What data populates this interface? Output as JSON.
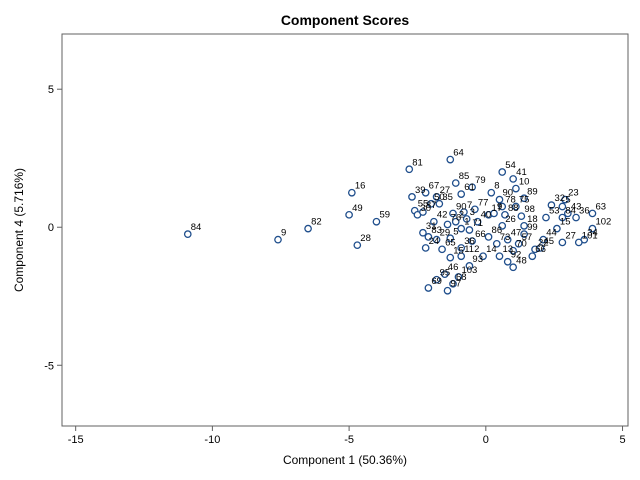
{
  "chart_data": {
    "type": "scatter",
    "title": "Component Scores",
    "xlabel": "Component 1 (50.36%)",
    "ylabel": "Component 4 (5.716%)",
    "xlim": [
      -15.5,
      5.2
    ],
    "ylim": [
      -7.2,
      7.0
    ],
    "xticks": [
      -15,
      -10,
      -5,
      0,
      5
    ],
    "yticks": [
      -5,
      0,
      5
    ],
    "grid": false,
    "legend": "none",
    "marker_color": "#1f4e8c",
    "points": [
      {
        "label": "84",
        "x": -10.9,
        "y": -0.25
      },
      {
        "label": "9",
        "x": -7.6,
        "y": -0.45
      },
      {
        "label": "82",
        "x": -6.5,
        "y": -0.05
      },
      {
        "label": "49",
        "x": -5.0,
        "y": 0.45
      },
      {
        "label": "16",
        "x": -4.9,
        "y": 1.25
      },
      {
        "label": "28",
        "x": -4.7,
        "y": -0.65
      },
      {
        "label": "59",
        "x": -4.0,
        "y": 0.2
      },
      {
        "label": "81",
        "x": -2.8,
        "y": 2.1
      },
      {
        "label": "39",
        "x": -2.7,
        "y": 1.1
      },
      {
        "label": "55",
        "x": -2.6,
        "y": 0.6
      },
      {
        "label": "30",
        "x": -2.5,
        "y": 0.45
      },
      {
        "label": "87",
        "x": -2.3,
        "y": 0.55
      },
      {
        "label": "67",
        "x": -2.2,
        "y": 1.25
      },
      {
        "label": "50",
        "x": -2.0,
        "y": 0.85
      },
      {
        "label": "35",
        "x": -1.7,
        "y": 0.85
      },
      {
        "label": "27",
        "x": -1.8,
        "y": 1.1
      },
      {
        "label": "42",
        "x": -1.9,
        "y": 0.2
      },
      {
        "label": "31",
        "x": -2.3,
        "y": -0.2
      },
      {
        "label": "83",
        "x": -2.1,
        "y": -0.35
      },
      {
        "label": "24",
        "x": -2.2,
        "y": -0.75
      },
      {
        "label": "29",
        "x": -1.8,
        "y": -0.45
      },
      {
        "label": "65",
        "x": -1.6,
        "y": -0.8
      },
      {
        "label": "15",
        "x": -1.3,
        "y": -1.1
      },
      {
        "label": "46",
        "x": -1.5,
        "y": -1.7
      },
      {
        "label": "95",
        "x": -1.8,
        "y": -1.9
      },
      {
        "label": "69",
        "x": -2.1,
        "y": -2.2
      },
      {
        "label": "97",
        "x": -1.4,
        "y": -2.3
      },
      {
        "label": "68",
        "x": -1.2,
        "y": -2.05
      },
      {
        "label": "103",
        "x": -1.0,
        "y": -1.8
      },
      {
        "label": "93",
        "x": -0.6,
        "y": -1.4
      },
      {
        "label": "112",
        "x": -0.9,
        "y": -1.05
      },
      {
        "label": "14",
        "x": -0.1,
        "y": -1.05
      },
      {
        "label": "13",
        "x": 0.5,
        "y": -1.05
      },
      {
        "label": "92",
        "x": 0.8,
        "y": -1.25
      },
      {
        "label": "48",
        "x": 1.0,
        "y": -1.45
      },
      {
        "label": "66",
        "x": 1.7,
        "y": -1.05
      },
      {
        "label": "64",
        "x": -1.3,
        "y": 2.45
      },
      {
        "label": "85",
        "x": -1.1,
        "y": 1.6
      },
      {
        "label": "61",
        "x": -0.9,
        "y": 1.2
      },
      {
        "label": "79",
        "x": -0.5,
        "y": 1.45
      },
      {
        "label": "54",
        "x": 0.6,
        "y": 2.0
      },
      {
        "label": "41",
        "x": 1.0,
        "y": 1.75
      },
      {
        "label": "10",
        "x": 1.1,
        "y": 1.4
      },
      {
        "label": "8",
        "x": 0.2,
        "y": 1.25
      },
      {
        "label": "90",
        "x": 0.5,
        "y": 1.0
      },
      {
        "label": "89",
        "x": 1.4,
        "y": 1.05
      },
      {
        "label": "23",
        "x": 2.9,
        "y": 1.0
      },
      {
        "label": "32",
        "x": 2.4,
        "y": 0.8
      },
      {
        "label": "5",
        "x": 2.8,
        "y": 0.75
      },
      {
        "label": "63",
        "x": 3.9,
        "y": 0.5
      },
      {
        "label": "43",
        "x": 3.0,
        "y": 0.5
      },
      {
        "label": "36",
        "x": 3.3,
        "y": 0.35
      },
      {
        "label": "102",
        "x": 3.9,
        "y": -0.05
      },
      {
        "label": "34",
        "x": 3.6,
        "y": -0.45
      },
      {
        "label": "101",
        "x": 3.4,
        "y": -0.55
      },
      {
        "label": "27",
        "x": 2.8,
        "y": -0.55
      },
      {
        "label": "90",
        "x": -1.2,
        "y": 0.5
      },
      {
        "label": "7",
        "x": -0.8,
        "y": 0.55
      },
      {
        "label": "77",
        "x": -0.4,
        "y": 0.65
      },
      {
        "label": "2",
        "x": -1.1,
        "y": 0.2
      },
      {
        "label": "3",
        "x": -0.7,
        "y": 0.3
      },
      {
        "label": "76",
        "x": -1.4,
        "y": 0.1
      },
      {
        "label": "1",
        "x": -0.9,
        "y": -0.05
      },
      {
        "label": "71",
        "x": -0.6,
        "y": -0.1
      },
      {
        "label": "5",
        "x": -1.3,
        "y": -0.4
      },
      {
        "label": "66",
        "x": -0.5,
        "y": -0.5
      },
      {
        "label": "36",
        "x": -0.9,
        "y": -0.75
      },
      {
        "label": "40",
        "x": -0.3,
        "y": 0.2
      },
      {
        "label": "17",
        "x": 0.1,
        "y": 0.45
      },
      {
        "label": "9",
        "x": 0.3,
        "y": 0.5
      },
      {
        "label": "88",
        "x": 0.7,
        "y": 0.45
      },
      {
        "label": "78",
        "x": 0.6,
        "y": 0.75
      },
      {
        "label": "75",
        "x": 1.1,
        "y": 0.75
      },
      {
        "label": "98",
        "x": 1.3,
        "y": 0.4
      },
      {
        "label": "26",
        "x": 0.6,
        "y": 0.05
      },
      {
        "label": "18",
        "x": 1.4,
        "y": 0.05
      },
      {
        "label": "86",
        "x": 0.1,
        "y": -0.35
      },
      {
        "label": "47",
        "x": 0.8,
        "y": -0.45
      },
      {
        "label": "73",
        "x": 0.4,
        "y": -0.6
      },
      {
        "label": "70",
        "x": 1.0,
        "y": -0.85
      },
      {
        "label": "57",
        "x": 1.2,
        "y": -0.6
      },
      {
        "label": "99",
        "x": 1.4,
        "y": -0.25
      },
      {
        "label": "44",
        "x": 2.1,
        "y": -0.45
      },
      {
        "label": "53",
        "x": 2.2,
        "y": 0.35
      },
      {
        "label": "84",
        "x": 2.8,
        "y": 0.35
      },
      {
        "label": "15",
        "x": 2.6,
        "y": -0.05
      },
      {
        "label": "45",
        "x": 2.0,
        "y": -0.75
      },
      {
        "label": "22",
        "x": 1.8,
        "y": -0.8
      }
    ]
  }
}
